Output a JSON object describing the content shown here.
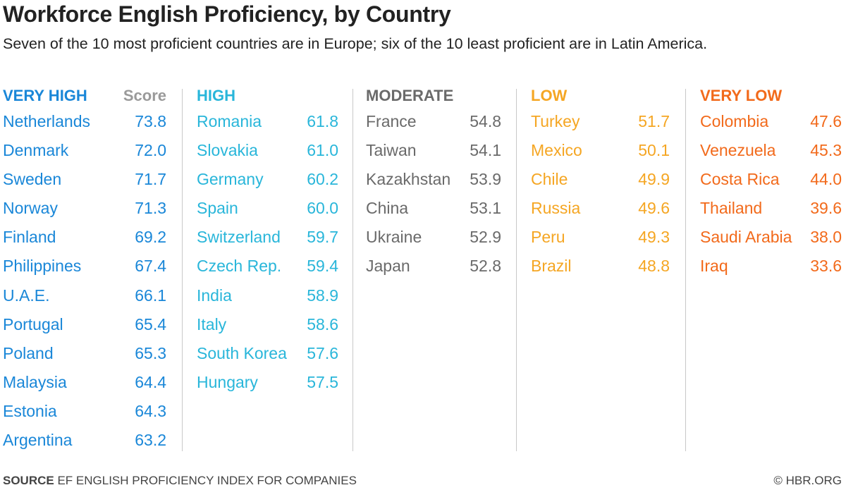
{
  "title": "Workforce English Proficiency, by Country",
  "subtitle": "Seven of the 10 most proficient countries are in Europe; six of the 10 least proficient are in Latin America.",
  "score_header": "Score",
  "source_label": "SOURCE",
  "source_text": "EF ENGLISH PROFICIENCY INDEX FOR COMPANIES",
  "credit": "© HBR.ORG",
  "chart_data": {
    "type": "table",
    "title": "Workforce English Proficiency, by Country",
    "value_label": "Score",
    "groups": [
      {
        "name": "VERY HIGH",
        "color": "#1a87d8",
        "rows": [
          {
            "country": "Netherlands",
            "score": "73.8"
          },
          {
            "country": "Denmark",
            "score": "72.0"
          },
          {
            "country": "Sweden",
            "score": "71.7"
          },
          {
            "country": "Norway",
            "score": "71.3"
          },
          {
            "country": "Finland",
            "score": "69.2"
          },
          {
            "country": "Philippines",
            "score": "67.4"
          },
          {
            "country": "U.A.E.",
            "score": "66.1"
          },
          {
            "country": "Portugal",
            "score": "65.4"
          },
          {
            "country": "Poland",
            "score": "65.3"
          },
          {
            "country": "Malaysia",
            "score": "64.4"
          },
          {
            "country": "Estonia",
            "score": "64.3"
          },
          {
            "country": "Argentina",
            "score": "63.2"
          }
        ]
      },
      {
        "name": "HIGH",
        "color": "#29b6da",
        "rows": [
          {
            "country": "Romania",
            "score": "61.8"
          },
          {
            "country": "Slovakia",
            "score": "61.0"
          },
          {
            "country": "Germany",
            "score": "60.2"
          },
          {
            "country": "Spain",
            "score": "60.0"
          },
          {
            "country": "Switzerland",
            "score": "59.7"
          },
          {
            "country": "Czech Rep.",
            "score": "59.4"
          },
          {
            "country": "India",
            "score": "58.9"
          },
          {
            "country": "Italy",
            "score": "58.6"
          },
          {
            "country": "South Korea",
            "score": "57.6"
          },
          {
            "country": "Hungary",
            "score": "57.5"
          }
        ]
      },
      {
        "name": "MODERATE",
        "color": "#6a6a6a",
        "rows": [
          {
            "country": "France",
            "score": "54.8"
          },
          {
            "country": "Taiwan",
            "score": "54.1"
          },
          {
            "country": "Kazakhstan",
            "score": "53.9"
          },
          {
            "country": "China",
            "score": "53.1"
          },
          {
            "country": "Ukraine",
            "score": "52.9"
          },
          {
            "country": "Japan",
            "score": "52.8"
          }
        ]
      },
      {
        "name": "LOW",
        "color": "#f5a623",
        "rows": [
          {
            "country": "Turkey",
            "score": "51.7"
          },
          {
            "country": "Mexico",
            "score": "50.1"
          },
          {
            "country": "Chile",
            "score": "49.9"
          },
          {
            "country": "Russia",
            "score": "49.6"
          },
          {
            "country": "Peru",
            "score": "49.3"
          },
          {
            "country": "Brazil",
            "score": "48.8"
          }
        ]
      },
      {
        "name": "VERY LOW",
        "color": "#f26a1b",
        "rows": [
          {
            "country": "Colombia",
            "score": "47.6"
          },
          {
            "country": "Venezuela",
            "score": "45.3"
          },
          {
            "country": "Costa Rica",
            "score": "44.0"
          },
          {
            "country": "Thailand",
            "score": "39.6"
          },
          {
            "country": "Saudi Arabia",
            "score": "38.0"
          },
          {
            "country": "Iraq",
            "score": "33.6"
          }
        ]
      }
    ]
  }
}
